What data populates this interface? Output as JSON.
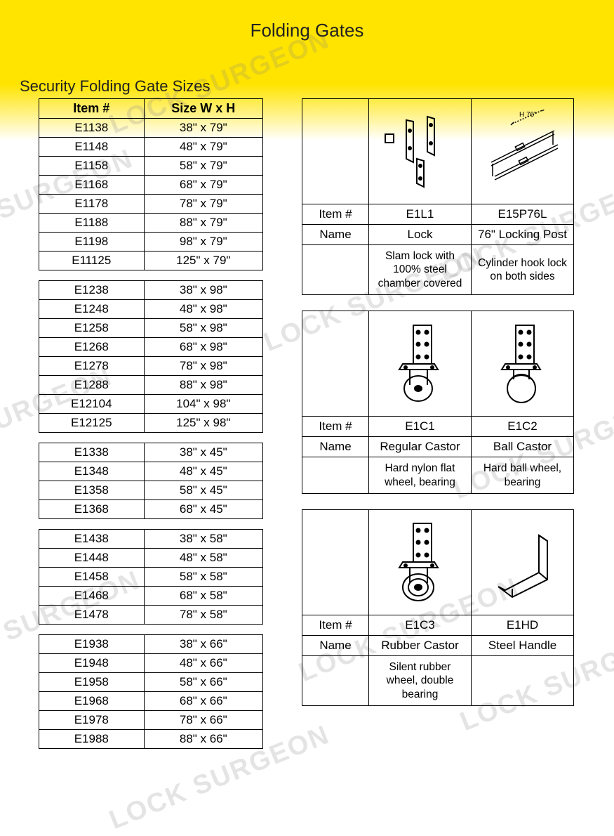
{
  "page": {
    "title": "Folding Gates",
    "section_title": "Security Folding Gate Sizes"
  },
  "colors": {
    "header_yellow": "#ffe400",
    "background": "#ffffff",
    "border": "#000000",
    "text": "#222222",
    "watermark": "rgba(130,130,130,0.22)"
  },
  "watermark_text": "LOCK SURGEON",
  "size_table": {
    "columns": [
      "Item #",
      "Size W x H"
    ],
    "groups": [
      [
        {
          "item": "E1138",
          "size": "38\" x 79\""
        },
        {
          "item": "E1148",
          "size": "48\" x 79\""
        },
        {
          "item": "E1158",
          "size": "58\" x 79\""
        },
        {
          "item": "E1168",
          "size": "68\" x 79\""
        },
        {
          "item": "E1178",
          "size": "78\" x 79\""
        },
        {
          "item": "E1188",
          "size": "88\" x 79\""
        },
        {
          "item": "E1198",
          "size": "98\" x 79\""
        },
        {
          "item": "E11125",
          "size": "125\" x 79\""
        }
      ],
      [
        {
          "item": "E1238",
          "size": "38\" x 98\""
        },
        {
          "item": "E1248",
          "size": "48\" x 98\""
        },
        {
          "item": "E1258",
          "size": "58\" x 98\""
        },
        {
          "item": "E1268",
          "size": "68\" x 98\""
        },
        {
          "item": "E1278",
          "size": "78\" x 98\""
        },
        {
          "item": "E1288",
          "size": "88\" x 98\""
        },
        {
          "item": "E12104",
          "size": "104\" x 98\""
        },
        {
          "item": "E12125",
          "size": "125\" x 98\""
        }
      ],
      [
        {
          "item": "E1338",
          "size": "38\" x 45\""
        },
        {
          "item": "E1348",
          "size": "48\" x 45\""
        },
        {
          "item": "E1358",
          "size": "58\" x 45\""
        },
        {
          "item": "E1368",
          "size": "68\" x 45\""
        }
      ],
      [
        {
          "item": "E1438",
          "size": "38\" x 58\""
        },
        {
          "item": "E1448",
          "size": "48\" x 58\""
        },
        {
          "item": "E1458",
          "size": "58\" x 58\""
        },
        {
          "item": "E1468",
          "size": "68\" x 58\""
        },
        {
          "item": "E1478",
          "size": "78\" x 58\""
        }
      ],
      [
        {
          "item": "E1938",
          "size": "38\" x 66\""
        },
        {
          "item": "E1948",
          "size": "48\" x 66\""
        },
        {
          "item": "E1958",
          "size": "58\" x 66\""
        },
        {
          "item": "E1968",
          "size": "68\" x 66\""
        },
        {
          "item": "E1978",
          "size": "78\" x 66\""
        },
        {
          "item": "E1988",
          "size": "88\" x 66\""
        }
      ]
    ]
  },
  "parts": {
    "row_labels": {
      "item": "Item #",
      "name": "Name"
    },
    "cards": [
      {
        "items": [
          {
            "id": "E1L1",
            "name": "Lock",
            "desc": "Slam lock with 100% steel chamber covered",
            "icon": "lock-bracket"
          },
          {
            "id": "E15P76L",
            "name": "76\" Locking Post",
            "desc": "Cylinder hook lock on both sides",
            "icon": "locking-post",
            "dim_label": "H 76\""
          }
        ]
      },
      {
        "items": [
          {
            "id": "E1C1",
            "name": "Regular Castor",
            "desc": "Hard nylon flat wheel, bearing",
            "icon": "castor-flat"
          },
          {
            "id": "E1C2",
            "name": "Ball Castor",
            "desc": "Hard ball wheel, bearing",
            "icon": "castor-ball"
          }
        ]
      },
      {
        "items": [
          {
            "id": "E1C3",
            "name": "Rubber Castor",
            "desc": "Silent rubber wheel, double bearing",
            "icon": "castor-rubber"
          },
          {
            "id": "E1HD",
            "name": "Steel Handle",
            "desc": "",
            "icon": "steel-handle"
          }
        ]
      }
    ]
  }
}
